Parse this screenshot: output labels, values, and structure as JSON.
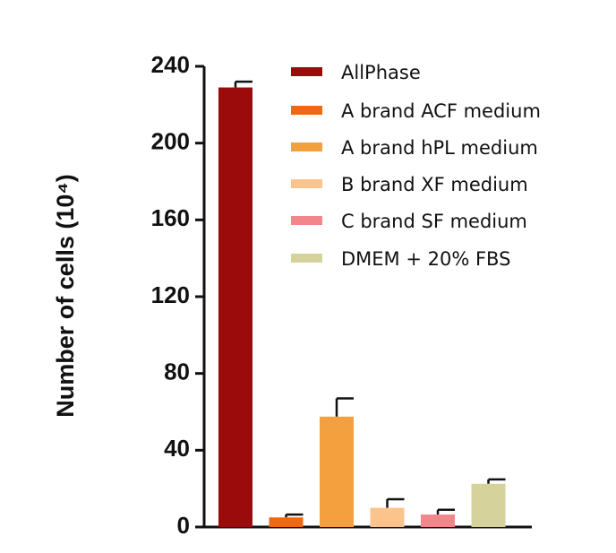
{
  "chart_data": {
    "type": "bar",
    "y_label": "Number of cells (10⁴)",
    "ylim": [
      0,
      240
    ],
    "yticks": [
      0,
      40,
      80,
      120,
      160,
      200,
      240
    ],
    "series": [
      {
        "name": "AllPhase",
        "color": "#9c0b0b",
        "values": [
          229
        ],
        "errors": [
          3
        ]
      },
      {
        "name": "A brand ACF medium",
        "color": "#f06810",
        "values": [
          5
        ],
        "errors": [
          1.5
        ]
      },
      {
        "name": "A brand hPL medium",
        "color": "#f5a03f",
        "values": [
          57.5
        ],
        "errors": [
          9.5
        ]
      },
      {
        "name": "B brand XF medium",
        "color": "#fbc48c",
        "values": [
          10
        ],
        "errors": [
          4.5
        ]
      },
      {
        "name": "C brand SF medium",
        "color": "#f3868a",
        "values": [
          6.5
        ],
        "errors": [
          2.5
        ]
      },
      {
        "name": "DMEM + 20% FBS",
        "color": "#d5d39b",
        "values": [
          22.5
        ],
        "errors": [
          2.3
        ]
      }
    ]
  }
}
